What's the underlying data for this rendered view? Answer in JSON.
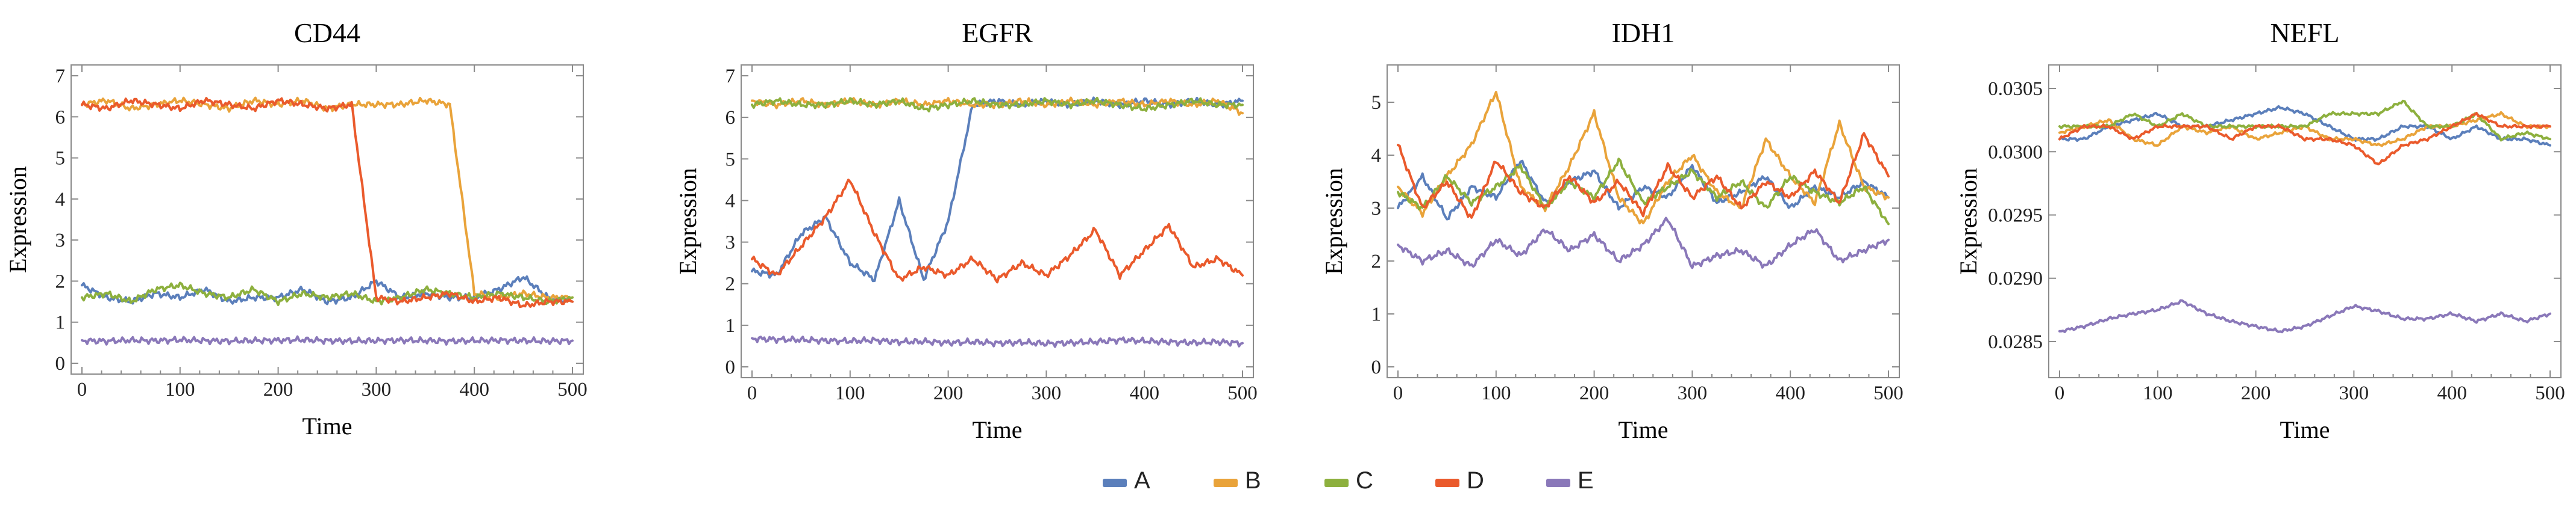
{
  "legend": {
    "items": [
      {
        "label": "A",
        "color": "#5b7fbb"
      },
      {
        "label": "B",
        "color": "#e9a33a"
      },
      {
        "label": "C",
        "color": "#8db03e"
      },
      {
        "label": "D",
        "color": "#ea5a2c"
      },
      {
        "label": "E",
        "color": "#8a78b9"
      }
    ]
  },
  "chart_data": [
    {
      "type": "line",
      "title": "CD44",
      "xlabel": "Time",
      "ylabel": "Expression",
      "xlim": [
        0,
        500
      ],
      "ylim": [
        0,
        7
      ],
      "xticks": [
        0,
        100,
        200,
        300,
        400,
        500
      ],
      "xtick_labels": [
        "0",
        "100",
        "200",
        "300",
        "400",
        "500"
      ],
      "yticks": [
        0,
        1,
        2,
        3,
        4,
        5,
        6,
        7
      ],
      "ytick_labels": [
        "0",
        "1",
        "2",
        "3",
        "4",
        "5",
        "6",
        "7"
      ],
      "x": [
        0,
        25,
        50,
        75,
        100,
        125,
        150,
        175,
        200,
        225,
        250,
        275,
        300,
        325,
        350,
        375,
        400,
        425,
        450,
        475,
        500
      ],
      "series": [
        {
          "name": "A",
          "values": [
            1.9,
            1.6,
            1.5,
            1.7,
            1.6,
            1.8,
            1.5,
            1.6,
            1.6,
            1.8,
            1.5,
            1.6,
            2.0,
            1.6,
            1.7,
            1.6,
            1.6,
            1.8,
            2.1,
            1.6,
            1.5
          ]
        },
        {
          "name": "B",
          "values": [
            6.3,
            6.4,
            6.2,
            6.3,
            6.4,
            6.3,
            6.2,
            6.4,
            6.3,
            6.4,
            6.2,
            6.3,
            6.3,
            6.3,
            6.4,
            6.3,
            1.7,
            1.6,
            1.7,
            1.6,
            1.6
          ]
        },
        {
          "name": "C",
          "values": [
            1.6,
            1.7,
            1.5,
            1.8,
            1.9,
            1.7,
            1.6,
            1.8,
            1.5,
            1.7,
            1.6,
            1.7,
            1.5,
            1.6,
            1.8,
            1.7,
            1.6,
            1.7,
            1.6,
            1.5,
            1.6
          ]
        },
        {
          "name": "D",
          "values": [
            6.3,
            6.2,
            6.4,
            6.3,
            6.2,
            6.4,
            6.3,
            6.2,
            6.4,
            6.3,
            6.2,
            6.3,
            1.6,
            1.5,
            1.6,
            1.7,
            1.5,
            1.6,
            1.4,
            1.5,
            1.5
          ]
        },
        {
          "name": "E",
          "values": [
            0.55,
            0.54,
            0.56,
            0.55,
            0.57,
            0.55,
            0.54,
            0.55,
            0.56,
            0.57,
            0.55,
            0.54,
            0.55,
            0.56,
            0.55,
            0.54,
            0.55,
            0.56,
            0.55,
            0.54,
            0.55
          ]
        }
      ]
    },
    {
      "type": "line",
      "title": "EGFR",
      "xlabel": "Time",
      "ylabel": "Expression",
      "xlim": [
        0,
        500
      ],
      "ylim": [
        0,
        7
      ],
      "xticks": [
        0,
        100,
        200,
        300,
        400,
        500
      ],
      "xtick_labels": [
        "0",
        "100",
        "200",
        "300",
        "400",
        "500"
      ],
      "yticks": [
        0,
        1,
        2,
        3,
        4,
        5,
        6,
        7
      ],
      "ytick_labels": [
        "0",
        "1",
        "2",
        "3",
        "4",
        "5",
        "6",
        "7"
      ],
      "x": [
        0,
        25,
        50,
        75,
        100,
        125,
        150,
        175,
        200,
        225,
        250,
        275,
        300,
        325,
        350,
        375,
        400,
        425,
        450,
        475,
        500
      ],
      "series": [
        {
          "name": "A",
          "values": [
            2.3,
            2.2,
            3.2,
            3.6,
            2.5,
            2.1,
            4.0,
            2.1,
            3.5,
            6.3,
            6.4,
            6.3,
            6.4,
            6.3,
            6.4,
            6.3,
            6.4,
            6.3,
            6.4,
            6.3,
            6.4
          ]
        },
        {
          "name": "B",
          "values": [
            6.4,
            6.3,
            6.4,
            6.3,
            6.4,
            6.3,
            6.4,
            6.3,
            6.4,
            6.3,
            6.3,
            6.4,
            6.3,
            6.4,
            6.3,
            6.4,
            6.3,
            6.4,
            6.3,
            6.4,
            6.1
          ]
        },
        {
          "name": "C",
          "values": [
            6.3,
            6.4,
            6.3,
            6.3,
            6.4,
            6.3,
            6.4,
            6.2,
            6.3,
            6.4,
            6.3,
            6.3,
            6.4,
            6.3,
            6.4,
            6.3,
            6.2,
            6.3,
            6.4,
            6.3,
            6.3
          ]
        },
        {
          "name": "D",
          "values": [
            2.6,
            2.2,
            2.9,
            3.6,
            4.5,
            3.2,
            2.1,
            2.4,
            2.2,
            2.6,
            2.1,
            2.5,
            2.2,
            2.7,
            3.3,
            2.2,
            2.8,
            3.4,
            2.4,
            2.6,
            2.2
          ]
        },
        {
          "name": "E",
          "values": [
            0.68,
            0.66,
            0.65,
            0.63,
            0.62,
            0.64,
            0.6,
            0.61,
            0.58,
            0.6,
            0.57,
            0.59,
            0.56,
            0.58,
            0.6,
            0.65,
            0.62,
            0.6,
            0.58,
            0.6,
            0.57
          ]
        }
      ]
    },
    {
      "type": "line",
      "title": "IDH1",
      "xlabel": "Time",
      "ylabel": "Expression",
      "xlim": [
        0,
        500
      ],
      "ylim": [
        0,
        5.5
      ],
      "xticks": [
        0,
        100,
        200,
        300,
        400,
        500
      ],
      "xtick_labels": [
        "0",
        "100",
        "200",
        "300",
        "400",
        "500"
      ],
      "yticks": [
        0,
        1,
        2,
        3,
        4,
        5
      ],
      "ytick_labels": [
        "0",
        "1",
        "2",
        "3",
        "4",
        "5"
      ],
      "x": [
        0,
        25,
        50,
        75,
        100,
        125,
        150,
        175,
        200,
        225,
        250,
        275,
        300,
        325,
        350,
        375,
        400,
        425,
        450,
        475,
        500
      ],
      "series": [
        {
          "name": "A",
          "values": [
            3.0,
            3.6,
            2.8,
            3.4,
            3.2,
            3.9,
            3.1,
            3.5,
            3.7,
            3.0,
            3.4,
            3.2,
            3.8,
            3.1,
            3.3,
            3.6,
            3.0,
            3.4,
            3.2,
            3.5,
            3.2
          ]
        },
        {
          "name": "B",
          "values": [
            3.4,
            2.9,
            3.6,
            4.2,
            5.2,
            3.4,
            3.0,
            3.8,
            4.8,
            3.2,
            2.7,
            3.5,
            4.0,
            3.3,
            3.0,
            4.3,
            3.6,
            3.1,
            4.6,
            3.4,
            3.2
          ]
        },
        {
          "name": "C",
          "values": [
            3.3,
            3.0,
            3.6,
            3.1,
            3.4,
            3.8,
            3.0,
            3.5,
            3.2,
            3.9,
            3.1,
            3.4,
            3.7,
            3.2,
            3.5,
            3.0,
            3.6,
            3.3,
            3.1,
            3.4,
            2.7
          ]
        },
        {
          "name": "D",
          "values": [
            4.2,
            3.0,
            3.5,
            2.8,
            3.9,
            3.3,
            3.0,
            3.6,
            3.1,
            3.5,
            2.9,
            3.8,
            3.2,
            3.6,
            3.0,
            3.5,
            3.2,
            3.7,
            3.1,
            4.4,
            3.6
          ]
        },
        {
          "name": "E",
          "values": [
            2.3,
            2.0,
            2.2,
            1.9,
            2.4,
            2.1,
            2.6,
            2.2,
            2.5,
            2.0,
            2.3,
            2.8,
            1.9,
            2.1,
            2.2,
            1.9,
            2.3,
            2.6,
            2.0,
            2.2,
            2.4
          ]
        }
      ]
    },
    {
      "type": "line",
      "title": "NEFL",
      "xlabel": "Time",
      "ylabel": "Expression",
      "xlim": [
        0,
        500
      ],
      "ylim": [
        0.0283,
        0.0306
      ],
      "xticks": [
        0,
        100,
        200,
        300,
        400,
        500
      ],
      "xtick_labels": [
        "0",
        "100",
        "200",
        "300",
        "400",
        "500"
      ],
      "yticks": [
        0.0285,
        0.029,
        0.0295,
        0.03,
        0.0305
      ],
      "ytick_labels": [
        "0.0285",
        "0.0290",
        "0.0295",
        "0.0300",
        "0.0305"
      ],
      "x": [
        0,
        25,
        50,
        75,
        100,
        125,
        150,
        175,
        200,
        225,
        250,
        275,
        300,
        325,
        350,
        375,
        400,
        425,
        450,
        475,
        500
      ],
      "series": [
        {
          "name": "A",
          "values": [
            0.0301,
            0.0301,
            0.0302,
            0.03025,
            0.0303,
            0.0302,
            0.0302,
            0.03025,
            0.0303,
            0.03035,
            0.0303,
            0.0302,
            0.0301,
            0.0301,
            0.0302,
            0.0302,
            0.0301,
            0.0302,
            0.0301,
            0.0301,
            0.03005
          ]
        },
        {
          "name": "B",
          "values": [
            0.03015,
            0.0302,
            0.03025,
            0.0301,
            0.03005,
            0.0302,
            0.03015,
            0.0302,
            0.0301,
            0.03015,
            0.0302,
            0.0301,
            0.0301,
            0.03005,
            0.0301,
            0.0302,
            0.0302,
            0.03025,
            0.0303,
            0.0302,
            0.0302
          ]
        },
        {
          "name": "C",
          "values": [
            0.0302,
            0.0302,
            0.0302,
            0.0303,
            0.0302,
            0.0303,
            0.0302,
            0.0302,
            0.0302,
            0.0302,
            0.0302,
            0.0303,
            0.0303,
            0.0303,
            0.0304,
            0.0302,
            0.0302,
            0.0303,
            0.0301,
            0.03015,
            0.0301
          ]
        },
        {
          "name": "D",
          "values": [
            0.0301,
            0.0302,
            0.0302,
            0.0301,
            0.0302,
            0.0302,
            0.0302,
            0.0301,
            0.0302,
            0.0302,
            0.0301,
            0.0301,
            0.03005,
            0.0299,
            0.03005,
            0.0301,
            0.0302,
            0.0303,
            0.0302,
            0.0302,
            0.0302
          ]
        },
        {
          "name": "E",
          "values": [
            0.02858,
            0.02862,
            0.02868,
            0.02872,
            0.02875,
            0.02882,
            0.02872,
            0.02866,
            0.02862,
            0.02858,
            0.02862,
            0.0287,
            0.02878,
            0.02874,
            0.02868,
            0.02868,
            0.02872,
            0.02866,
            0.02872,
            0.02866,
            0.02872
          ]
        }
      ]
    }
  ]
}
